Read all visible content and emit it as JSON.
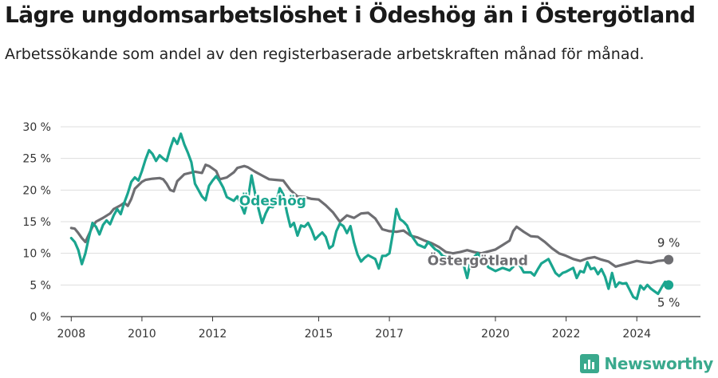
{
  "header": {
    "title": "Lägre ungdomsarbetslöshet i Ödeshög än i Östergötland",
    "subtitle": "Arbetssökande som andel av den registerbaserade arbetskraften månad för månad."
  },
  "brand": {
    "name": "Newsworthy",
    "color": "#3aa98d"
  },
  "chart_data": {
    "type": "line",
    "title": "Lägre ungdomsarbetslöshet i Ödeshög än i Östergötland",
    "subtitle": "Arbetssökande som andel av den registerbaserade arbetskraften månad för månad.",
    "xlabel": "",
    "ylabel": "",
    "xlim": [
      2007.7,
      2025.8
    ],
    "ylim": [
      0,
      30
    ],
    "yticks": [
      0,
      5,
      10,
      15,
      20,
      25,
      30
    ],
    "ytick_labels": [
      "0 %",
      "5 %",
      "10 %",
      "15 %",
      "20 %",
      "25 %",
      "30 %"
    ],
    "xticks": [
      2008,
      2010,
      2012,
      2015,
      2017,
      2020,
      2022,
      2024
    ],
    "xtick_labels": [
      "2008",
      "2010",
      "2012",
      "2015",
      "2017",
      "2020",
      "2022",
      "2024"
    ],
    "grid": true,
    "legend": "direct labels",
    "series": [
      {
        "name": "Östergötland",
        "color": "#6e6e72",
        "end_label": "9 %",
        "end_value": 9,
        "points": [
          [
            2008.0,
            14.0
          ],
          [
            2008.1,
            13.9
          ],
          [
            2008.2,
            13.2
          ],
          [
            2008.3,
            12.4
          ],
          [
            2008.4,
            11.8
          ],
          [
            2008.5,
            13.0
          ],
          [
            2008.6,
            14.2
          ],
          [
            2008.7,
            15.0
          ],
          [
            2008.9,
            15.6
          ],
          [
            2009.1,
            16.3
          ],
          [
            2009.2,
            17.0
          ],
          [
            2009.4,
            17.6
          ],
          [
            2009.5,
            18.0
          ],
          [
            2009.6,
            17.5
          ],
          [
            2009.7,
            18.6
          ],
          [
            2009.8,
            20.2
          ],
          [
            2010.0,
            21.3
          ],
          [
            2010.1,
            21.6
          ],
          [
            2010.3,
            21.8
          ],
          [
            2010.5,
            21.9
          ],
          [
            2010.6,
            21.7
          ],
          [
            2010.7,
            21.0
          ],
          [
            2010.8,
            20.0
          ],
          [
            2010.9,
            19.8
          ],
          [
            2011.0,
            21.4
          ],
          [
            2011.2,
            22.5
          ],
          [
            2011.5,
            22.9
          ],
          [
            2011.7,
            22.7
          ],
          [
            2011.8,
            24.0
          ],
          [
            2011.9,
            23.8
          ],
          [
            2012.1,
            23.0
          ],
          [
            2012.2,
            21.7
          ],
          [
            2012.4,
            22.0
          ],
          [
            2012.6,
            22.8
          ],
          [
            2012.7,
            23.5
          ],
          [
            2012.9,
            23.8
          ],
          [
            2013.0,
            23.6
          ],
          [
            2013.2,
            22.9
          ],
          [
            2013.4,
            22.3
          ],
          [
            2013.6,
            21.7
          ],
          [
            2013.8,
            21.6
          ],
          [
            2014.0,
            21.5
          ],
          [
            2014.2,
            20.0
          ],
          [
            2014.4,
            19.0
          ],
          [
            2014.6,
            18.9
          ],
          [
            2014.8,
            18.6
          ],
          [
            2015.0,
            18.5
          ],
          [
            2015.2,
            17.6
          ],
          [
            2015.4,
            16.5
          ],
          [
            2015.6,
            15.0
          ],
          [
            2015.8,
            16.0
          ],
          [
            2016.0,
            15.6
          ],
          [
            2016.2,
            16.3
          ],
          [
            2016.4,
            16.4
          ],
          [
            2016.6,
            15.5
          ],
          [
            2016.8,
            13.8
          ],
          [
            2017.0,
            13.5
          ],
          [
            2017.2,
            13.4
          ],
          [
            2017.4,
            13.6
          ],
          [
            2017.6,
            12.8
          ],
          [
            2017.8,
            12.5
          ],
          [
            2018.0,
            12.0
          ],
          [
            2018.2,
            11.6
          ],
          [
            2018.4,
            11.0
          ],
          [
            2018.6,
            10.2
          ],
          [
            2018.8,
            10.0
          ],
          [
            2019.0,
            10.2
          ],
          [
            2019.2,
            10.5
          ],
          [
            2019.4,
            10.2
          ],
          [
            2019.6,
            10.0
          ],
          [
            2019.8,
            10.3
          ],
          [
            2020.0,
            10.6
          ],
          [
            2020.2,
            11.3
          ],
          [
            2020.4,
            12.0
          ],
          [
            2020.5,
            13.5
          ],
          [
            2020.6,
            14.2
          ],
          [
            2020.8,
            13.4
          ],
          [
            2021.0,
            12.7
          ],
          [
            2021.2,
            12.6
          ],
          [
            2021.4,
            11.8
          ],
          [
            2021.6,
            10.8
          ],
          [
            2021.8,
            10.0
          ],
          [
            2022.0,
            9.6
          ],
          [
            2022.2,
            9.1
          ],
          [
            2022.4,
            8.8
          ],
          [
            2022.6,
            9.2
          ],
          [
            2022.8,
            9.4
          ],
          [
            2023.0,
            9.0
          ],
          [
            2023.2,
            8.7
          ],
          [
            2023.4,
            7.9
          ],
          [
            2023.6,
            8.2
          ],
          [
            2023.8,
            8.5
          ],
          [
            2024.0,
            8.8
          ],
          [
            2024.2,
            8.6
          ],
          [
            2024.4,
            8.5
          ],
          [
            2024.6,
            8.8
          ],
          [
            2024.8,
            8.9
          ],
          [
            2024.9,
            9.0
          ]
        ]
      },
      {
        "name": "Ödeshög",
        "color": "#1aa58f",
        "end_label": "5 %",
        "end_value": 5,
        "points": [
          [
            2008.0,
            12.4
          ],
          [
            2008.1,
            11.8
          ],
          [
            2008.2,
            10.5
          ],
          [
            2008.3,
            8.3
          ],
          [
            2008.4,
            10.0
          ],
          [
            2008.5,
            12.5
          ],
          [
            2008.6,
            14.8
          ],
          [
            2008.7,
            14.2
          ],
          [
            2008.8,
            13.0
          ],
          [
            2008.9,
            14.5
          ],
          [
            2009.0,
            15.2
          ],
          [
            2009.1,
            14.6
          ],
          [
            2009.2,
            16.0
          ],
          [
            2009.3,
            17.0
          ],
          [
            2009.4,
            16.2
          ],
          [
            2009.5,
            18.0
          ],
          [
            2009.6,
            19.5
          ],
          [
            2009.7,
            21.3
          ],
          [
            2009.8,
            22.0
          ],
          [
            2009.9,
            21.5
          ],
          [
            2010.0,
            23.0
          ],
          [
            2010.1,
            24.8
          ],
          [
            2010.2,
            26.3
          ],
          [
            2010.3,
            25.7
          ],
          [
            2010.4,
            24.6
          ],
          [
            2010.5,
            25.5
          ],
          [
            2010.6,
            25.0
          ],
          [
            2010.7,
            24.6
          ],
          [
            2010.8,
            26.6
          ],
          [
            2010.9,
            28.2
          ],
          [
            2011.0,
            27.3
          ],
          [
            2011.1,
            28.9
          ],
          [
            2011.2,
            27.2
          ],
          [
            2011.3,
            25.9
          ],
          [
            2011.4,
            24.4
          ],
          [
            2011.5,
            21.0
          ],
          [
            2011.7,
            19.0
          ],
          [
            2011.8,
            18.4
          ],
          [
            2011.9,
            20.7
          ],
          [
            2012.0,
            21.5
          ],
          [
            2012.1,
            22.2
          ],
          [
            2012.2,
            21.4
          ],
          [
            2012.3,
            20.4
          ],
          [
            2012.4,
            18.9
          ],
          [
            2012.6,
            18.3
          ],
          [
            2012.7,
            19.0
          ],
          [
            2012.8,
            17.7
          ],
          [
            2012.9,
            16.3
          ],
          [
            2013.0,
            18.5
          ],
          [
            2013.1,
            22.3
          ],
          [
            2013.2,
            19.5
          ],
          [
            2013.3,
            17.0
          ],
          [
            2013.4,
            14.8
          ],
          [
            2013.5,
            16.3
          ],
          [
            2013.6,
            17.4
          ],
          [
            2013.7,
            17.3
          ],
          [
            2013.8,
            18.2
          ],
          [
            2013.9,
            20.3
          ],
          [
            2014.0,
            19.3
          ],
          [
            2014.1,
            16.5
          ],
          [
            2014.2,
            14.2
          ],
          [
            2014.3,
            14.8
          ],
          [
            2014.4,
            12.8
          ],
          [
            2014.5,
            14.4
          ],
          [
            2014.6,
            14.2
          ],
          [
            2014.7,
            14.8
          ],
          [
            2014.8,
            13.7
          ],
          [
            2014.9,
            12.2
          ],
          [
            2015.0,
            12.8
          ],
          [
            2015.1,
            13.3
          ],
          [
            2015.2,
            12.6
          ],
          [
            2015.3,
            10.8
          ],
          [
            2015.4,
            11.2
          ],
          [
            2015.5,
            13.5
          ],
          [
            2015.6,
            14.7
          ],
          [
            2015.7,
            14.3
          ],
          [
            2015.8,
            13.2
          ],
          [
            2015.9,
            14.3
          ],
          [
            2016.0,
            11.7
          ],
          [
            2016.1,
            9.8
          ],
          [
            2016.2,
            8.7
          ],
          [
            2016.3,
            9.3
          ],
          [
            2016.4,
            9.7
          ],
          [
            2016.5,
            9.4
          ],
          [
            2016.6,
            9.1
          ],
          [
            2016.7,
            7.6
          ],
          [
            2016.8,
            9.6
          ],
          [
            2016.9,
            9.6
          ],
          [
            2017.0,
            10.0
          ],
          [
            2017.1,
            13.2
          ],
          [
            2017.2,
            17.0
          ],
          [
            2017.3,
            15.4
          ],
          [
            2017.4,
            15.0
          ],
          [
            2017.5,
            14.4
          ],
          [
            2017.6,
            13.0
          ],
          [
            2017.8,
            11.4
          ],
          [
            2018.0,
            10.9
          ],
          [
            2018.1,
            11.8
          ],
          [
            2018.2,
            11.2
          ],
          [
            2018.3,
            10.6
          ],
          [
            2018.4,
            10.3
          ],
          [
            2018.5,
            9.6
          ],
          [
            2018.6,
            9.4
          ],
          [
            2018.8,
            8.1
          ],
          [
            2019.0,
            9.3
          ],
          [
            2019.1,
            8.2
          ],
          [
            2019.2,
            6.1
          ],
          [
            2019.3,
            8.9
          ],
          [
            2019.5,
            10.0
          ],
          [
            2019.6,
            9.1
          ],
          [
            2019.7,
            8.8
          ],
          [
            2019.8,
            7.8
          ],
          [
            2020.0,
            7.2
          ],
          [
            2020.2,
            7.7
          ],
          [
            2020.4,
            7.3
          ],
          [
            2020.6,
            8.4
          ],
          [
            2020.7,
            8.0
          ],
          [
            2020.8,
            7.0
          ],
          [
            2021.0,
            7.0
          ],
          [
            2021.1,
            6.5
          ],
          [
            2021.2,
            7.5
          ],
          [
            2021.3,
            8.4
          ],
          [
            2021.5,
            9.1
          ],
          [
            2021.6,
            8.0
          ],
          [
            2021.7,
            6.9
          ],
          [
            2021.8,
            6.4
          ],
          [
            2021.9,
            6.9
          ],
          [
            2022.0,
            7.1
          ],
          [
            2022.2,
            7.7
          ],
          [
            2022.3,
            6.1
          ],
          [
            2022.4,
            7.2
          ],
          [
            2022.5,
            7.0
          ],
          [
            2022.6,
            8.6
          ],
          [
            2022.7,
            7.5
          ],
          [
            2022.8,
            7.7
          ],
          [
            2022.9,
            6.7
          ],
          [
            2023.0,
            7.5
          ],
          [
            2023.1,
            6.3
          ],
          [
            2023.2,
            4.4
          ],
          [
            2023.3,
            6.9
          ],
          [
            2023.4,
            4.7
          ],
          [
            2023.5,
            5.4
          ],
          [
            2023.6,
            5.2
          ],
          [
            2023.7,
            5.3
          ],
          [
            2023.8,
            4.2
          ],
          [
            2023.9,
            3.1
          ],
          [
            2024.0,
            2.8
          ],
          [
            2024.1,
            4.9
          ],
          [
            2024.2,
            4.3
          ],
          [
            2024.3,
            5.0
          ],
          [
            2024.4,
            4.4
          ],
          [
            2024.5,
            4.0
          ],
          [
            2024.6,
            3.6
          ],
          [
            2024.7,
            4.6
          ],
          [
            2024.8,
            5.5
          ],
          [
            2024.9,
            5.0
          ]
        ]
      }
    ],
    "annotations": [
      {
        "text": "Ödeshög",
        "series": "Ödeshög"
      },
      {
        "text": "Östergötland",
        "series": "Östergötland"
      }
    ]
  }
}
